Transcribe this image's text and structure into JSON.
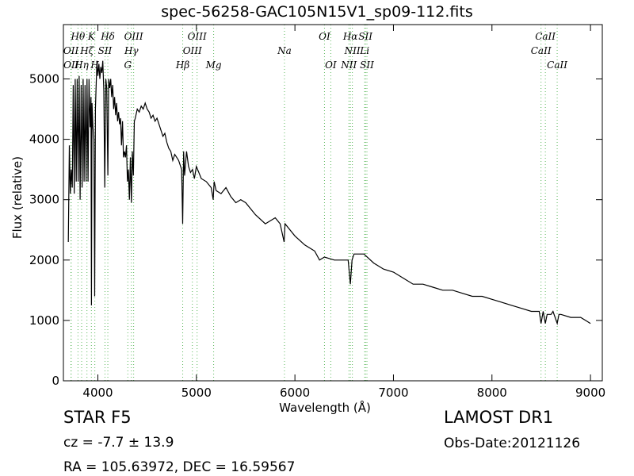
{
  "chart_data": {
    "type": "line",
    "title": "spec-56258-GAC105N15V1_sp09-112.fits",
    "xlabel": "Wavelength (Å)",
    "ylabel": "Flux (relative)",
    "xlim": [
      3650,
      9120
    ],
    "ylim": [
      0,
      5900
    ],
    "xticks": [
      4000,
      5000,
      6000,
      7000,
      8000,
      9000
    ],
    "yticks": [
      0,
      1000,
      2000,
      3000,
      4000,
      5000
    ],
    "grid": false,
    "series": [
      {
        "color": "#000000",
        "x": [
          3700,
          3710,
          3720,
          3730,
          3740,
          3750,
          3760,
          3770,
          3780,
          3790,
          3800,
          3810,
          3820,
          3830,
          3840,
          3850,
          3860,
          3870,
          3880,
          3890,
          3900,
          3910,
          3920,
          3930,
          3935,
          3940,
          3950,
          3960,
          3968,
          3975,
          3990,
          4000,
          4010,
          4020,
          4030,
          4040,
          4050,
          4060,
          4070,
          4080,
          4090,
          4101,
          4110,
          4120,
          4130,
          4140,
          4150,
          4160,
          4170,
          4180,
          4190,
          4200,
          4210,
          4220,
          4230,
          4240,
          4250,
          4260,
          4270,
          4280,
          4290,
          4300,
          4310,
          4320,
          4330,
          4340,
          4350,
          4360,
          4370,
          4380,
          4400,
          4420,
          4440,
          4460,
          4480,
          4500,
          4520,
          4540,
          4560,
          4580,
          4600,
          4620,
          4640,
          4660,
          4680,
          4700,
          4720,
          4740,
          4760,
          4780,
          4800,
          4820,
          4840,
          4850,
          4861,
          4870,
          4880,
          4900,
          4920,
          4940,
          4960,
          4980,
          5000,
          5050,
          5100,
          5150,
          5170,
          5180,
          5200,
          5250,
          5300,
          5350,
          5400,
          5450,
          5500,
          5600,
          5700,
          5800,
          5850,
          5890,
          5900,
          6000,
          6100,
          6200,
          6250,
          6300,
          6400,
          6500,
          6540,
          6563,
          6580,
          6600,
          6700,
          6800,
          6900,
          7000,
          7100,
          7200,
          7300,
          7400,
          7500,
          7600,
          7700,
          7800,
          7900,
          8000,
          8100,
          8200,
          8300,
          8400,
          8450,
          8480,
          8498,
          8520,
          8542,
          8560,
          8600,
          8620,
          8662,
          8680,
          8700,
          8800,
          8900,
          8950,
          9000
        ],
        "values": [
          2300,
          3900,
          3100,
          3500,
          3200,
          4900,
          3100,
          5000,
          3300,
          5000,
          3300,
          5050,
          3000,
          4900,
          3200,
          5000,
          3300,
          4900,
          3300,
          5000,
          3300,
          5000,
          4200,
          4700,
          1250,
          4600,
          4200,
          4000,
          1400,
          4500,
          5300,
          5050,
          5250,
          5000,
          5200,
          5100,
          5300,
          4800,
          3200,
          5000,
          4850,
          3400,
          5000,
          4850,
          5000,
          4700,
          4900,
          4500,
          4700,
          4400,
          4600,
          4300,
          4450,
          4250,
          4350,
          3900,
          4300,
          3700,
          3800,
          3700,
          3900,
          3300,
          3500,
          3000,
          3700,
          2950,
          3800,
          3400,
          4300,
          4350,
          4500,
          4450,
          4550,
          4500,
          4600,
          4500,
          4450,
          4350,
          4400,
          4300,
          4350,
          4250,
          4150,
          4050,
          4100,
          3950,
          3850,
          3800,
          3650,
          3750,
          3700,
          3650,
          3550,
          3500,
          2600,
          3800,
          3400,
          3800,
          3550,
          3450,
          3500,
          3350,
          3550,
          3350,
          3300,
          3200,
          3000,
          3300,
          3150,
          3100,
          3200,
          3050,
          2950,
          3000,
          2950,
          2750,
          2600,
          2700,
          2600,
          2300,
          2600,
          2400,
          2250,
          2150,
          2000,
          2050,
          2000,
          2000,
          2000,
          1600,
          2000,
          2100,
          2100,
          1950,
          1850,
          1800,
          1700,
          1600,
          1600,
          1550,
          1500,
          1500,
          1450,
          1400,
          1400,
          1350,
          1300,
          1250,
          1200,
          1150,
          1150,
          1150,
          950,
          1150,
          950,
          1100,
          1100,
          1150,
          950,
          1100,
          1100,
          1050,
          1050,
          1000,
          950
        ]
      }
    ],
    "lines": [
      {
        "name": "OII",
        "x": 3727,
        "level": 2
      },
      {
        "name": "OII",
        "x": 3729,
        "level": 3
      },
      {
        "name": "Hθ",
        "x": 3798,
        "level": 1
      },
      {
        "name": "Hη",
        "x": 3835,
        "level": 3
      },
      {
        "name": "Hζ",
        "x": 3889,
        "level": 2
      },
      {
        "name": "K",
        "x": 3934,
        "level": 1
      },
      {
        "name": "H",
        "x": 3969,
        "level": 3
      },
      {
        "name": "SII",
        "x": 4072,
        "level": 2
      },
      {
        "name": "Hδ",
        "x": 4101,
        "level": 1
      },
      {
        "name": "G",
        "x": 4304,
        "level": 3
      },
      {
        "name": "Hγ",
        "x": 4340,
        "level": 2
      },
      {
        "name": "OIII",
        "x": 4363,
        "level": 1
      },
      {
        "name": "Hβ",
        "x": 4861,
        "level": 3
      },
      {
        "name": "OIII",
        "x": 4959,
        "level": 2
      },
      {
        "name": "OIII",
        "x": 5007,
        "level": 1
      },
      {
        "name": "Mg",
        "x": 5175,
        "level": 3
      },
      {
        "name": "Na",
        "x": 5894,
        "level": 2
      },
      {
        "name": "OI",
        "x": 6300,
        "level": 1
      },
      {
        "name": "OI",
        "x": 6364,
        "level": 3
      },
      {
        "name": "NII",
        "x": 6548,
        "level": 3
      },
      {
        "name": "Hα",
        "x": 6563,
        "level": 1
      },
      {
        "name": "NII",
        "x": 6583,
        "level": 2
      },
      {
        "name": "Li",
        "x": 6708,
        "level": 2
      },
      {
        "name": "SII",
        "x": 6716,
        "level": 1
      },
      {
        "name": "SII",
        "x": 6731,
        "level": 3
      },
      {
        "name": "CaII",
        "x": 8498,
        "level": 2
      },
      {
        "name": "CaII",
        "x": 8542,
        "level": 1
      },
      {
        "name": "CaII",
        "x": 8662,
        "level": 3
      }
    ],
    "line_color": "#5cb85c"
  },
  "info": {
    "class_label": "STAR   F5",
    "survey": "LAMOST DR1",
    "cz": "cz = -7.7 ± 13.9",
    "obs_date": "Obs-Date:20121126",
    "coords": "RA = 105.63972, DEC = 16.59567"
  }
}
